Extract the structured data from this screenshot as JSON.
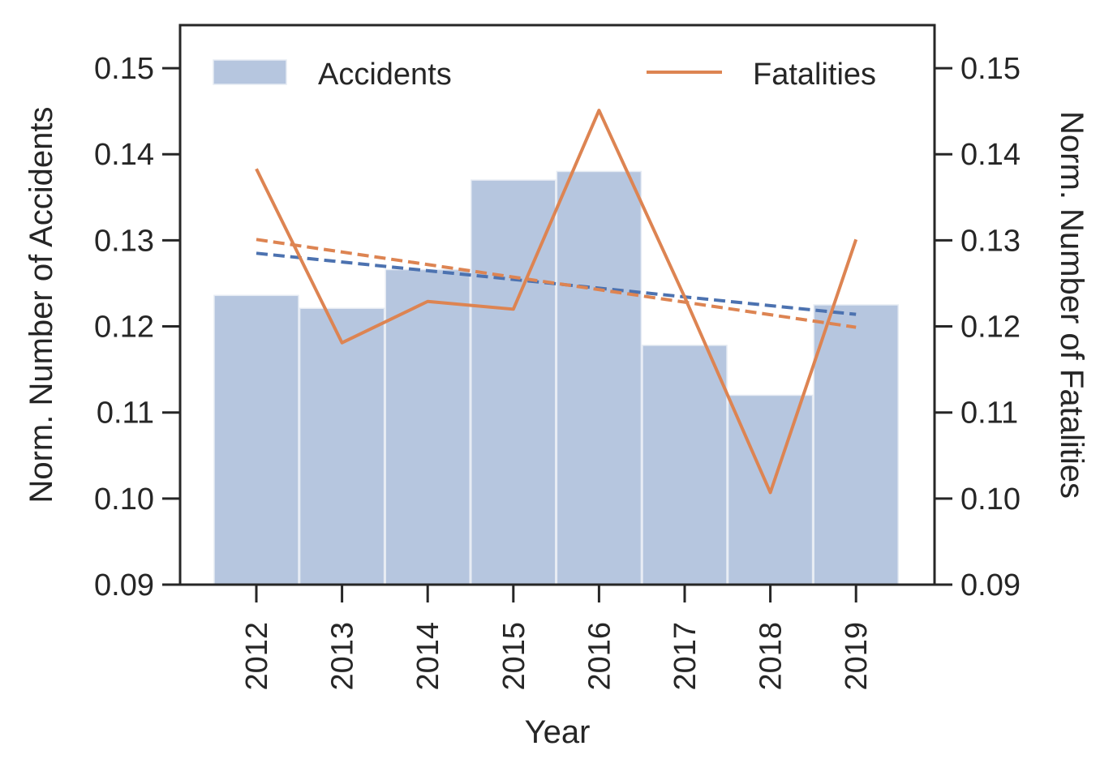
{
  "chart_data": {
    "type": "bar",
    "categories": [
      "2012",
      "2013",
      "2014",
      "2015",
      "2016",
      "2017",
      "2018",
      "2019"
    ],
    "series": [
      {
        "name": "Accidents",
        "type": "bar",
        "axis": "left",
        "color": "#b6c6df",
        "values": [
          0.1236,
          0.1221,
          0.1266,
          0.137,
          0.138,
          0.1178,
          0.112,
          0.1225
        ]
      },
      {
        "name": "Fatalities",
        "type": "line",
        "axis": "right",
        "color": "#dd8452",
        "values": [
          0.1383,
          0.1181,
          0.1229,
          0.122,
          0.1451,
          0.1234,
          0.1007,
          0.1301
        ]
      }
    ],
    "trend_lines": [
      {
        "of": "Accidents",
        "color": "#4c72b0",
        "style": "dashed",
        "start": 0.1285,
        "end": 0.1214
      },
      {
        "of": "Fatalities",
        "color": "#dd8452",
        "style": "dashed",
        "start": 0.1301,
        "end": 0.1199
      }
    ],
    "xlabel": "Year",
    "ylabel": "Norm. Number of Accidents",
    "y2label": "Norm. Number of Fatalities",
    "ylim": [
      0.09,
      0.155
    ],
    "y2lim": [
      0.09,
      0.155
    ],
    "yticks": [
      "0.09",
      "0.10",
      "0.11",
      "0.12",
      "0.13",
      "0.14",
      "0.15"
    ],
    "legend": [
      "Accidents",
      "Fatalities"
    ],
    "legend_placement": "top",
    "grid": false
  }
}
